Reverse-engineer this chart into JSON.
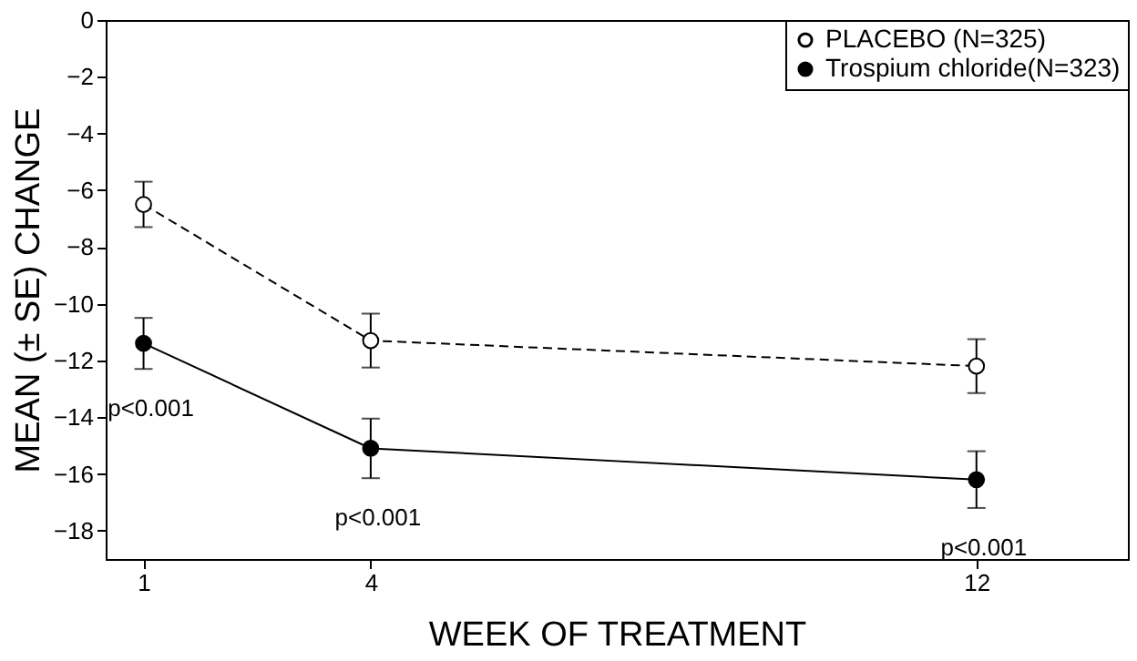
{
  "chart_data": {
    "type": "line",
    "xlabel": "WEEK OF TREATMENT",
    "ylabel": "MEAN (± SE) CHANGE",
    "x": [
      1,
      4,
      12
    ],
    "xlim": [
      0.5,
      14
    ],
    "xticks": [
      1,
      4,
      12
    ],
    "ylim": [
      -19,
      0
    ],
    "yticks": [
      0,
      -2,
      -4,
      -6,
      -8,
      -10,
      -12,
      -14,
      -16,
      -18
    ],
    "series": [
      {
        "name": "PLACEBO (N=325)",
        "color": "#000000",
        "line_style": "dashed",
        "values": [
          -6.5,
          -11.3,
          -12.2
        ],
        "errors": [
          0.8,
          0.95,
          0.95
        ]
      },
      {
        "name": "Trospium chloride(N=323)",
        "color": "#000000",
        "line_style": "solid",
        "values": [
          -11.4,
          -15.1,
          -16.2
        ],
        "errors": [
          0.9,
          1.05,
          1.0
        ]
      }
    ],
    "marker": "circle",
    "grid": false,
    "legend": "top right",
    "annotations": [
      "p<0.001",
      "p<0.001",
      "p<0.001"
    ]
  }
}
